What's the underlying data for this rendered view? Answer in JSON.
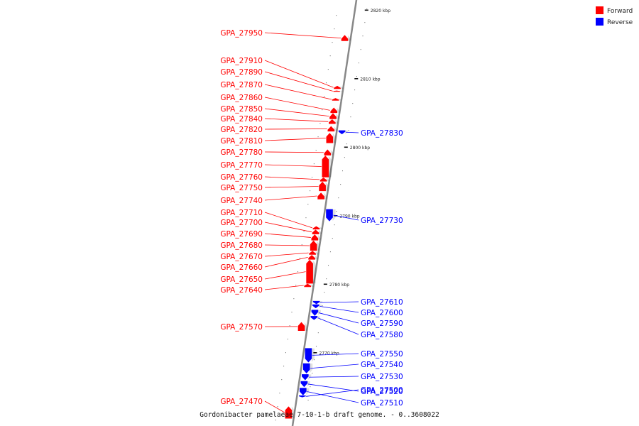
{
  "legend": {
    "forward": {
      "label": "Forward",
      "color": "#ff0000"
    },
    "reverse": {
      "label": "Reverse",
      "color": "#0000ff"
    }
  },
  "caption": "Gordonibacter pamelaeae 7-10-1-b draft genome. - 0..3608022",
  "axis": {
    "unit": "kbp",
    "color": "#888888"
  },
  "ticks": [
    {
      "label": "2820 kbp",
      "kbp": 2820
    },
    {
      "label": "2810 kbp",
      "kbp": 2810
    },
    {
      "label": "2800 kbp",
      "kbp": 2800
    },
    {
      "label": "2790 kbp",
      "kbp": 2790
    },
    {
      "label": "2780 kbp",
      "kbp": 2780
    },
    {
      "label": "2770 kbp",
      "kbp": 2770
    }
  ],
  "genes": [
    {
      "name": "GPA_27950",
      "strand": "forward",
      "start_kbp": 2816.4,
      "end_kbp": 2815.6
    },
    {
      "name": "GPA_27910",
      "strand": "forward",
      "start_kbp": 2809.0,
      "end_kbp": 2808.6
    },
    {
      "name": "GPA_27890",
      "strand": "forward",
      "start_kbp": 2808.3,
      "end_kbp": 2808.2
    },
    {
      "name": "GPA_27870",
      "strand": "forward",
      "start_kbp": 2807.2,
      "end_kbp": 2806.9
    },
    {
      "name": "GPA_27860",
      "strand": "forward",
      "start_kbp": 2805.8,
      "end_kbp": 2805.1
    },
    {
      "name": "GPA_27850",
      "strand": "forward",
      "start_kbp": 2805.0,
      "end_kbp": 2804.2
    },
    {
      "name": "GPA_27840",
      "strand": "forward",
      "start_kbp": 2804.1,
      "end_kbp": 2803.5
    },
    {
      "name": "GPA_27820",
      "strand": "forward",
      "start_kbp": 2803.1,
      "end_kbp": 2802.4
    },
    {
      "name": "GPA_27810",
      "strand": "forward",
      "start_kbp": 2802.1,
      "end_kbp": 2800.7
    },
    {
      "name": "GPA_27780",
      "strand": "forward",
      "start_kbp": 2799.7,
      "end_kbp": 2798.9
    },
    {
      "name": "GPA_27770",
      "strand": "forward",
      "start_kbp": 2798.8,
      "end_kbp": 2795.7
    },
    {
      "name": "GPA_27760",
      "strand": "forward",
      "start_kbp": 2795.6,
      "end_kbp": 2795.1
    },
    {
      "name": "GPA_27750",
      "strand": "forward",
      "start_kbp": 2795.0,
      "end_kbp": 2793.7
    },
    {
      "name": "GPA_27740",
      "strand": "forward",
      "start_kbp": 2793.4,
      "end_kbp": 2792.5
    },
    {
      "name": "GPA_27710",
      "strand": "forward",
      "start_kbp": 2788.5,
      "end_kbp": 2788.1
    },
    {
      "name": "GPA_27700",
      "strand": "forward",
      "start_kbp": 2788.0,
      "end_kbp": 2787.4
    },
    {
      "name": "GPA_27690",
      "strand": "forward",
      "start_kbp": 2787.3,
      "end_kbp": 2786.5
    },
    {
      "name": "GPA_27680",
      "strand": "forward",
      "start_kbp": 2786.4,
      "end_kbp": 2785.0
    },
    {
      "name": "GPA_27670",
      "strand": "forward",
      "start_kbp": 2784.9,
      "end_kbp": 2784.4
    },
    {
      "name": "GPA_27660",
      "strand": "forward",
      "start_kbp": 2784.3,
      "end_kbp": 2783.7
    },
    {
      "name": "GPA_27650",
      "strand": "forward",
      "start_kbp": 2783.6,
      "end_kbp": 2780.2
    },
    {
      "name": "GPA_27640",
      "strand": "forward",
      "start_kbp": 2780.1,
      "end_kbp": 2779.7
    },
    {
      "name": "GPA_27570",
      "strand": "forward",
      "start_kbp": 2774.5,
      "end_kbp": 2773.3
    },
    {
      "name": "GPA_27470",
      "strand": "forward",
      "start_kbp": 2762.2,
      "end_kbp": 2760.5
    },
    {
      "name": "GPA_27830",
      "strand": "reverse",
      "start_kbp": 2802.0,
      "end_kbp": 2802.5
    },
    {
      "name": "GPA_27730",
      "strand": "reverse",
      "start_kbp": 2789.3,
      "end_kbp": 2791.0
    },
    {
      "name": "GPA_27610",
      "strand": "reverse",
      "start_kbp": 2777.2,
      "end_kbp": 2777.6
    },
    {
      "name": "GPA_27600",
      "strand": "reverse",
      "start_kbp": 2776.6,
      "end_kbp": 2777.1
    },
    {
      "name": "GPA_27590",
      "strand": "reverse",
      "start_kbp": 2775.5,
      "end_kbp": 2776.3
    },
    {
      "name": "GPA_27580",
      "strand": "reverse",
      "start_kbp": 2774.9,
      "end_kbp": 2775.4
    },
    {
      "name": "GPA_27550",
      "strand": "reverse",
      "start_kbp": 2768.7,
      "end_kbp": 2770.7
    },
    {
      "name": "GPA_27540",
      "strand": "reverse",
      "start_kbp": 2767.1,
      "end_kbp": 2768.5
    },
    {
      "name": "GPA_27530",
      "strand": "reverse",
      "start_kbp": 2766.1,
      "end_kbp": 2766.9
    },
    {
      "name": "GPA_27520",
      "strand": "reverse",
      "start_kbp": 2765.1,
      "end_kbp": 2765.9
    },
    {
      "name": "GPA_27510",
      "strand": "reverse",
      "start_kbp": 2763.9,
      "end_kbp": 2764.9
    },
    {
      "name": "GPA_27500",
      "strand": "reverse",
      "start_kbp": 2763.6,
      "end_kbp": 2763.8
    }
  ]
}
